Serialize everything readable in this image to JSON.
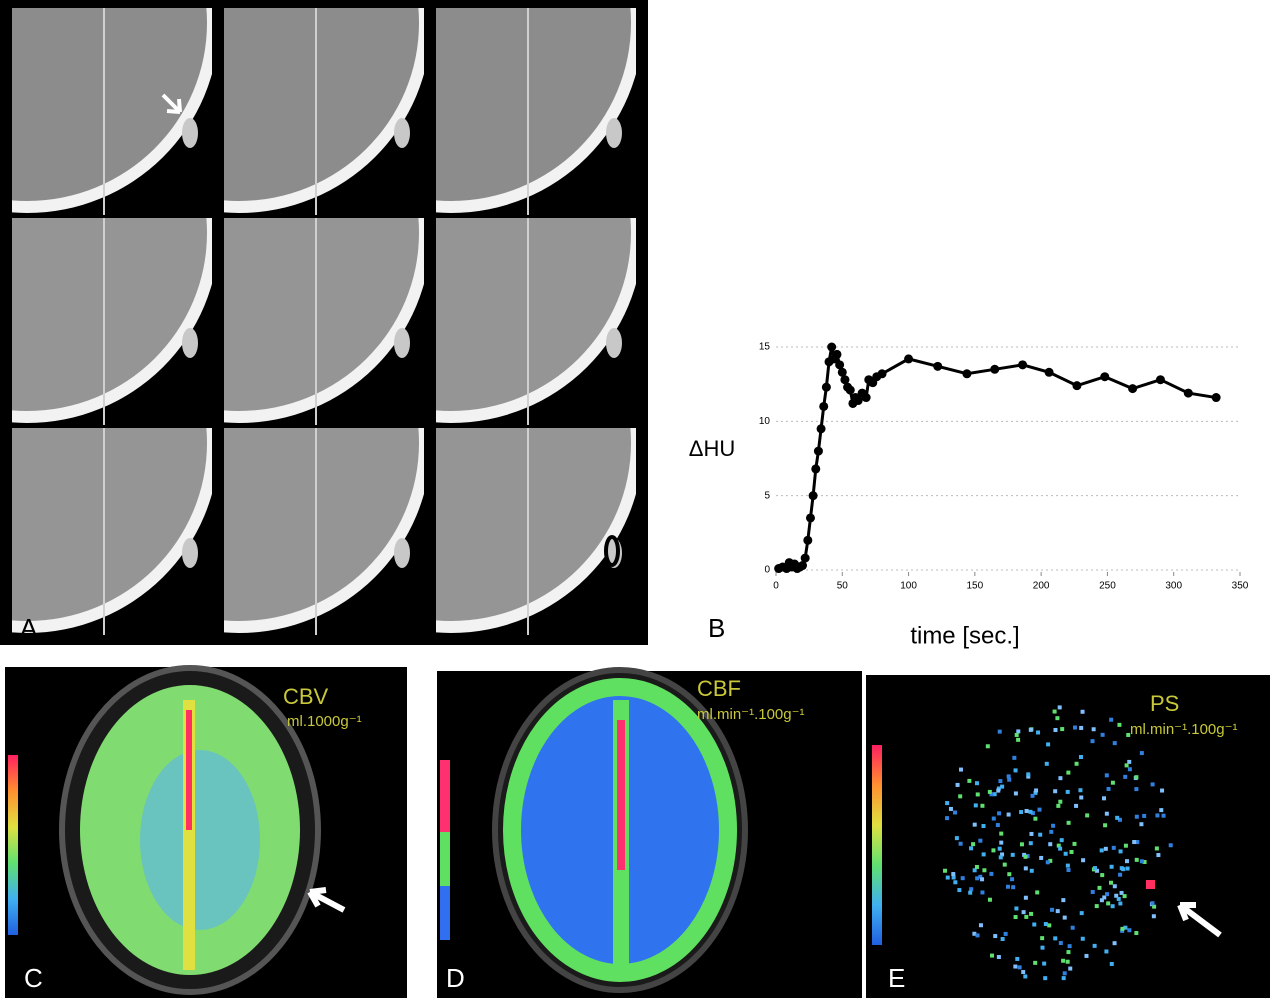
{
  "panel_labels": [
    "A",
    "B",
    "C",
    "D",
    "E"
  ],
  "maps": [
    {
      "title": "CBV",
      "unit": "ml.1000g⁻¹"
    },
    {
      "title": "CBF",
      "unit": "ml.min⁻¹.100g⁻¹"
    },
    {
      "title": "PS",
      "unit": "ml.min⁻¹.100g⁻¹"
    }
  ],
  "chart_data": {
    "type": "line",
    "x_label": "time [sec.]",
    "y_label": "ΔHU",
    "color": "#000000",
    "grid": true,
    "x": [
      2,
      5,
      8,
      10,
      12,
      14,
      16,
      18,
      20,
      22,
      24,
      26,
      28,
      30,
      32,
      34,
      36,
      38,
      40,
      42,
      44,
      46,
      48,
      50,
      52,
      54,
      56,
      58,
      60,
      62,
      65,
      68,
      70,
      73,
      76,
      80,
      100,
      122,
      144,
      165,
      186,
      206,
      227,
      248,
      269,
      290,
      311,
      332
    ],
    "values": [
      0.1,
      0.2,
      0.1,
      0.5,
      0.2,
      0.4,
      0.1,
      0.2,
      0.3,
      0.8,
      2,
      3.5,
      5,
      6.8,
      8,
      9.5,
      11,
      12.3,
      14,
      15,
      14.2,
      14.5,
      13.8,
      13.3,
      12.8,
      12.3,
      12.1,
      11.2,
      11.6,
      11.4,
      11.9,
      11.6,
      12.8,
      12.6,
      13,
      13.2,
      14.2,
      13.7,
      13.2,
      13.5,
      13.8,
      13.3,
      12.4,
      13,
      12.2,
      12.8,
      11.9,
      11.6
    ],
    "xlim": [
      0,
      350
    ],
    "xticks": [
      0,
      50,
      100,
      150,
      200,
      250,
      300,
      350
    ],
    "ylim": [
      0,
      15
    ],
    "yticks": [
      0,
      5,
      10,
      15
    ]
  }
}
